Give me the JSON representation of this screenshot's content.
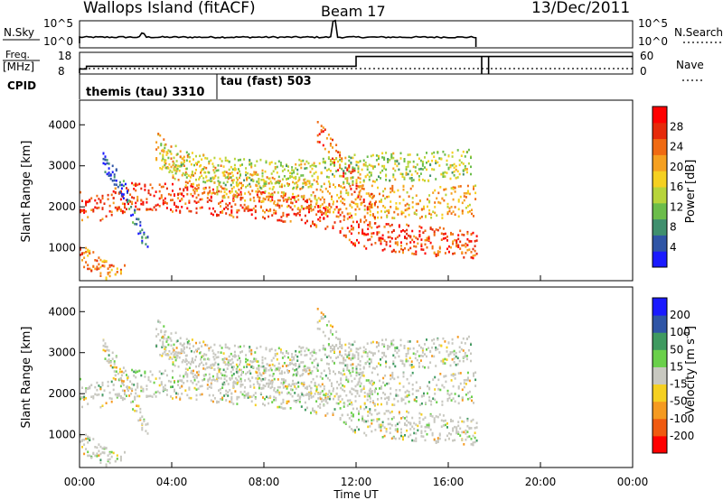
{
  "header": {
    "station": "Wallops Island (fitACF)",
    "beam": "Beam 17",
    "date": "13/Dec/2011"
  },
  "status_panel": {
    "nsky_label": "N.Sky",
    "nsearch_label": "N.Search",
    "freq_label": "Freq.",
    "freq_unit": "[MHz]",
    "nave_label": "Nave",
    "cpid_label": "CPID",
    "left_ticks_top": [
      "10^5",
      "10^0"
    ],
    "right_ticks_top": [
      "10^5",
      "10^0"
    ],
    "left_ticks_freq": [
      "18",
      "8"
    ],
    "right_ticks_nave": [
      "60",
      "0"
    ],
    "cpid_modes": [
      {
        "label": "themis (tau) 3310",
        "start_hour": 0.0
      },
      {
        "label": "tau (fast) 503",
        "start_hour": 6.0
      }
    ],
    "frequency_mhz": [
      {
        "start_hour": 0.0,
        "end_hour": 12.0,
        "value": 10
      },
      {
        "start_hour": 12.0,
        "end_hour": 24.0,
        "value": 16
      }
    ],
    "data_end_hour": 17.2,
    "nave_spikes_hour": [
      17.45,
      17.75
    ]
  },
  "chart_data": [
    {
      "type": "heatmap",
      "quantity": "Power",
      "ylabel": "Slant Range [km]",
      "colorbar_label": "Power [dB]",
      "colorbar_ticks": [
        "4",
        "8",
        "12",
        "16",
        "20",
        "24",
        "28"
      ],
      "colorbar_colors": [
        "#1a1aff",
        "#2f55a6",
        "#3f8f6e",
        "#6bbd4a",
        "#b7d43a",
        "#f5d020",
        "#f5a020",
        "#f06a12",
        "#e62a0a",
        "#ff0000"
      ],
      "x_range": [
        0,
        24
      ],
      "ylim": [
        200,
        4600
      ],
      "yticks": [
        "1000",
        "2000",
        "3000",
        "4000"
      ],
      "data_end_hour": 17.2,
      "echo_bands": [
        {
          "name": "band-a",
          "pts": [
            [
              0.0,
              2050
            ],
            [
              0.5,
              1950
            ],
            [
              1.0,
              2050
            ],
            [
              2.0,
              2250
            ],
            [
              3.0,
              2300
            ],
            [
              4.0,
              2250
            ],
            [
              5.0,
              2200
            ],
            [
              6.0,
              2150
            ],
            [
              7.0,
              2100
            ],
            [
              8.0,
              2050
            ],
            [
              9.0,
              2000
            ],
            [
              10.0,
              1900
            ],
            [
              11.0,
              1750
            ],
            [
              12.0,
              1400
            ],
            [
              13.0,
              1300
            ],
            [
              14.0,
              1250
            ],
            [
              15.0,
              1200
            ],
            [
              16.0,
              1150
            ],
            [
              17.2,
              1100
            ]
          ],
          "dy": 350,
          "level": 0.82
        },
        {
          "name": "band-b",
          "pts": [
            [
              3.3,
              3450
            ],
            [
              4.0,
              3100
            ],
            [
              5.0,
              2800
            ],
            [
              6.0,
              2650
            ],
            [
              7.0,
              2550
            ],
            [
              8.0,
              2500
            ],
            [
              9.0,
              2400
            ],
            [
              10.0,
              2300
            ],
            [
              11.0,
              2200
            ],
            [
              12.0,
              2150
            ],
            [
              14.0,
              2150
            ],
            [
              16.0,
              2150
            ],
            [
              17.2,
              2150
            ]
          ],
          "dy": 400,
          "level": 0.62
        },
        {
          "name": "band-c",
          "pts": [
            [
              10.3,
              3900
            ],
            [
              10.8,
              3500
            ],
            [
              11.3,
              3100
            ],
            [
              11.8,
              2700
            ],
            [
              12.3,
              2300
            ],
            [
              12.8,
              1900
            ]
          ],
          "dy": 300,
          "level": 0.78
        },
        {
          "name": "band-d",
          "pts": [
            [
              3.5,
              3300
            ],
            [
              5.0,
              3000
            ],
            [
              7.0,
              2850
            ],
            [
              9.0,
              2800
            ],
            [
              11.0,
              2900
            ],
            [
              13.0,
              3000
            ],
            [
              15.0,
              3000
            ],
            [
              17.0,
              3100
            ]
          ],
          "dy": 350,
          "level": 0.45
        },
        {
          "name": "band-e",
          "pts": [
            [
              0.0,
              850
            ],
            [
              0.5,
              700
            ],
            [
              1.0,
              550
            ],
            [
              1.5,
              400
            ],
            [
              2.0,
              350
            ]
          ],
          "dy": 250,
          "level": 0.7
        },
        {
          "name": "band-f",
          "pts": [
            [
              1.0,
              3100
            ],
            [
              2.0,
              2400
            ],
            [
              2.5,
              1500
            ],
            [
              3.0,
              1200
            ]
          ],
          "dy": 250,
          "level": 0.15
        }
      ]
    },
    {
      "type": "heatmap",
      "quantity": "Velocity",
      "ylabel": "Slant Range [km]",
      "colorbar_label": "Velocity [m s^-1]",
      "colorbar_ticks": [
        "-200",
        "-100",
        "-50",
        "-15",
        "15",
        "50",
        "100",
        "200"
      ],
      "colorbar_colors": [
        "#ff0000",
        "#f05a10",
        "#f59a20",
        "#f5d020",
        "#c8c8c0",
        "#6ad04a",
        "#3f9a60",
        "#2f55a6",
        "#1a1aff"
      ],
      "x_range": [
        0,
        24
      ],
      "ylim": [
        200,
        4600
      ],
      "yticks": [
        "1000",
        "2000",
        "3000",
        "4000"
      ],
      "data_end_hour": 17.2,
      "xticks": [
        "00:00",
        "04:00",
        "08:00",
        "12:00",
        "16:00",
        "20:00",
        "00:00"
      ],
      "xlabel": "Time UT"
    }
  ]
}
